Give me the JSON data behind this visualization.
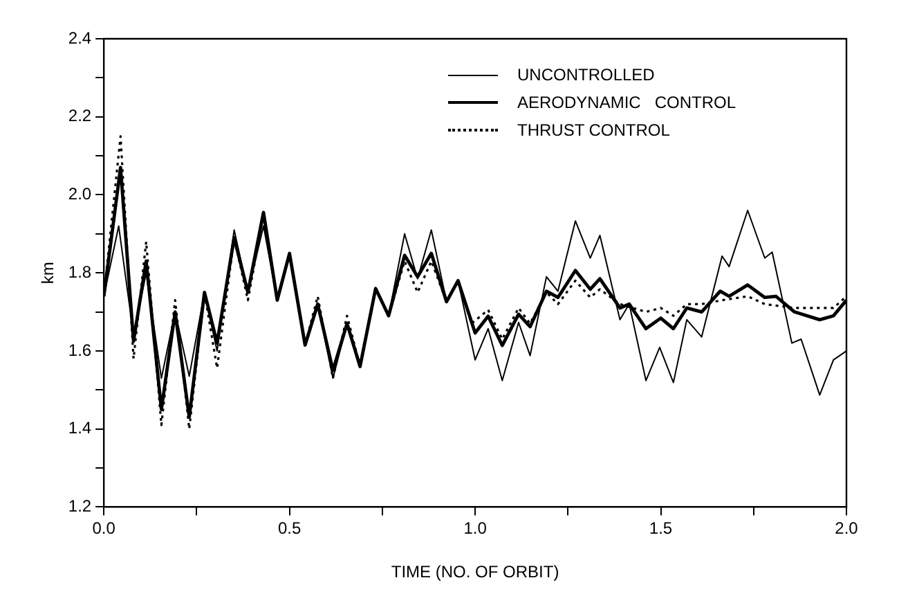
{
  "chart_data": {
    "type": "line",
    "xlabel": "TIME (NO. OF ORBIT)",
    "ylabel": "km",
    "xlim": [
      0,
      2
    ],
    "ylim": [
      1.2,
      2.4
    ],
    "xticks": [
      {
        "value": 0,
        "label": "0.0"
      },
      {
        "value": 0.25,
        "label": null
      },
      {
        "value": 0.5,
        "label": "0.5"
      },
      {
        "value": 0.75,
        "label": null
      },
      {
        "value": 1,
        "label": "1.0"
      },
      {
        "value": 1.25,
        "label": null
      },
      {
        "value": 1.5,
        "label": "1.5"
      },
      {
        "value": 1.75,
        "label": null
      },
      {
        "value": 2,
        "label": "2.0"
      }
    ],
    "yticks": [
      {
        "value": 1.2,
        "label": "1.2"
      },
      {
        "value": 1.3,
        "label": null
      },
      {
        "value": 1.4,
        "label": "1.4"
      },
      {
        "value": 1.5,
        "label": null
      },
      {
        "value": 1.6,
        "label": "1.6"
      },
      {
        "value": 1.7,
        "label": null
      },
      {
        "value": 1.8,
        "label": "1.8"
      },
      {
        "value": 1.9,
        "label": null
      },
      {
        "value": 2,
        "label": "2.0"
      },
      {
        "value": 2.1,
        "label": null
      },
      {
        "value": 2.2,
        "label": "2.2"
      },
      {
        "value": 2.3,
        "label": null
      },
      {
        "value": 2.4,
        "label": "2.4"
      }
    ],
    "grid": false,
    "legend": "top right",
    "marker": "none",
    "series": [
      {
        "name": "UNCONTROLLED",
        "color": "#000000",
        "line_style": "solid",
        "x": [
          0,
          0.04,
          0.08,
          0.114,
          0.155,
          0.192,
          0.23,
          0.271,
          0.305,
          0.351,
          0.388,
          0.43,
          0.467,
          0.5,
          0.542,
          0.576,
          0.617,
          0.655,
          0.69,
          0.732,
          0.767,
          0.81,
          0.845,
          0.882,
          0.923,
          0.954,
          1.0,
          1.035,
          1.073,
          1.117,
          1.148,
          1.192,
          1.223,
          1.27,
          1.31,
          1.336,
          1.39,
          1.415,
          1.46,
          1.497,
          1.534,
          1.57,
          1.61,
          1.665,
          1.684,
          1.734,
          1.78,
          1.8,
          1.853,
          1.878,
          1.928,
          1.965,
          2.0
        ],
        "values": [
          1.74,
          1.92,
          1.64,
          1.8,
          1.53,
          1.7,
          1.535,
          1.75,
          1.6,
          1.91,
          1.75,
          1.92,
          1.73,
          1.85,
          1.615,
          1.72,
          1.53,
          1.67,
          1.56,
          1.76,
          1.69,
          1.9,
          1.785,
          1.91,
          1.726,
          1.78,
          1.577,
          1.657,
          1.524,
          1.673,
          1.588,
          1.79,
          1.753,
          1.933,
          1.838,
          1.896,
          1.68,
          1.72,
          1.524,
          1.609,
          1.519,
          1.68,
          1.636,
          1.843,
          1.816,
          1.96,
          1.838,
          1.853,
          1.62,
          1.63,
          1.487,
          1.577,
          1.6
        ]
      },
      {
        "name": "AERODYNAMIC   CONTROL",
        "color": "#000000",
        "line_style": "solid",
        "x": [
          0,
          0.045,
          0.08,
          0.114,
          0.155,
          0.192,
          0.23,
          0.271,
          0.305,
          0.351,
          0.388,
          0.43,
          0.467,
          0.5,
          0.542,
          0.576,
          0.617,
          0.655,
          0.69,
          0.732,
          0.767,
          0.81,
          0.845,
          0.882,
          0.923,
          0.954,
          1.0,
          1.035,
          1.073,
          1.117,
          1.148,
          1.192,
          1.223,
          1.27,
          1.31,
          1.336,
          1.39,
          1.415,
          1.46,
          1.5,
          1.534,
          1.57,
          1.61,
          1.66,
          1.684,
          1.734,
          1.78,
          1.81,
          1.86,
          1.928,
          1.965,
          2.0
        ],
        "values": [
          1.74,
          2.07,
          1.625,
          1.83,
          1.45,
          1.7,
          1.43,
          1.75,
          1.62,
          1.89,
          1.75,
          1.955,
          1.73,
          1.85,
          1.615,
          1.72,
          1.55,
          1.67,
          1.56,
          1.76,
          1.69,
          1.845,
          1.79,
          1.85,
          1.726,
          1.78,
          1.646,
          1.689,
          1.614,
          1.694,
          1.662,
          1.753,
          1.737,
          1.806,
          1.758,
          1.785,
          1.71,
          1.72,
          1.657,
          1.684,
          1.657,
          1.71,
          1.7,
          1.753,
          1.74,
          1.769,
          1.737,
          1.74,
          1.7,
          1.68,
          1.69,
          1.73
        ]
      },
      {
        "name": "THRUST CONTROL",
        "color": "#000000",
        "line_style": "dotted",
        "x": [
          0,
          0.045,
          0.08,
          0.114,
          0.155,
          0.192,
          0.23,
          0.271,
          0.305,
          0.351,
          0.388,
          0.43,
          0.467,
          0.5,
          0.542,
          0.576,
          0.617,
          0.655,
          0.69,
          0.732,
          0.767,
          0.81,
          0.845,
          0.882,
          0.923,
          0.954,
          0.99,
          1.035,
          1.073,
          1.117,
          1.148,
          1.192,
          1.223,
          1.27,
          1.31,
          1.336,
          1.39,
          1.46,
          1.5,
          1.534,
          1.57,
          1.61,
          1.665,
          1.734,
          1.78,
          1.86,
          1.928,
          1.965,
          2.0
        ],
        "values": [
          1.74,
          2.15,
          1.58,
          1.88,
          1.41,
          1.73,
          1.4,
          1.75,
          1.556,
          1.89,
          1.73,
          1.95,
          1.73,
          1.85,
          1.615,
          1.74,
          1.53,
          1.69,
          1.56,
          1.76,
          1.69,
          1.83,
          1.75,
          1.83,
          1.726,
          1.78,
          1.67,
          1.705,
          1.63,
          1.71,
          1.67,
          1.75,
          1.72,
          1.78,
          1.737,
          1.758,
          1.72,
          1.7,
          1.71,
          1.69,
          1.72,
          1.72,
          1.73,
          1.74,
          1.72,
          1.71,
          1.71,
          1.71,
          1.74
        ]
      }
    ]
  }
}
